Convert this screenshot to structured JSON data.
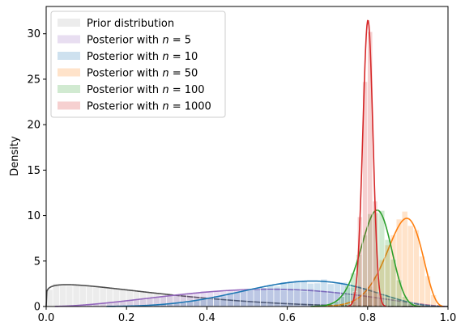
{
  "chart_data": {
    "type": "area",
    "ylabel": "Density",
    "xlabel": "",
    "xlim": [
      0,
      1
    ],
    "ylim": [
      0,
      33
    ],
    "xticks": [
      "0.0",
      "0.2",
      "0.4",
      "0.6",
      "0.8",
      "1.0"
    ],
    "yticks": [
      "0",
      "5",
      "10",
      "15",
      "20",
      "25",
      "30"
    ],
    "legend_position": "top-left",
    "series": [
      {
        "name": "Prior distribution",
        "prefix": "Prior distribution",
        "n": "",
        "color": "#4d4d4d",
        "fill": "#d9d9d9",
        "alpha_type": "beta",
        "a": 1.15,
        "b": 3.8,
        "peak": 2.4
      },
      {
        "name": "Posterior with n = 5",
        "prefix": "Posterior with ",
        "n": "5",
        "color": "#9467bd",
        "fill": "#9467bd",
        "alpha_type": "beta",
        "a": 3.0,
        "b": 2.6,
        "peak": 1.9
      },
      {
        "name": "Posterior with n = 10",
        "prefix": "Posterior with ",
        "n": "10",
        "color": "#1f77b4",
        "fill": "#1f77b4",
        "alpha_type": "beta",
        "a": 6.5,
        "b": 3.8,
        "peak": 2.8
      },
      {
        "name": "Posterior with n = 50",
        "prefix": "Posterior with ",
        "n": "50",
        "color": "#ff7f0e",
        "fill": "#ff7f0e",
        "alpha_type": "beta",
        "a": 43.0,
        "b": 5.8,
        "peak": 9.7
      },
      {
        "name": "Posterior with n = 100",
        "prefix": "Posterior with ",
        "n": "100",
        "color": "#2ca02c",
        "fill": "#2ca02c",
        "alpha_type": "beta",
        "a": 85.0,
        "b": 19.0,
        "peak": 10.6
      },
      {
        "name": "Posterior with n = 1000",
        "prefix": "Posterior with ",
        "n": "1000",
        "color": "#d62728",
        "fill": "#d62728",
        "alpha_type": "beta",
        "a": 805.0,
        "b": 201.0,
        "peak": 31.5
      }
    ]
  }
}
